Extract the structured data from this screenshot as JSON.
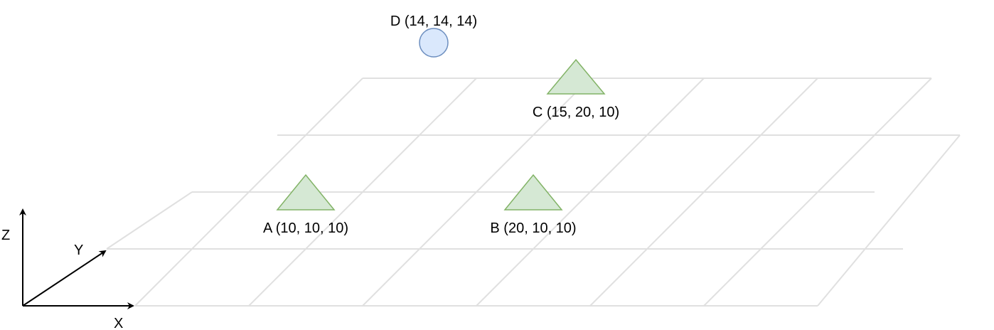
{
  "axes": {
    "x_label": "X",
    "y_label": "Y",
    "z_label": "Z",
    "color": "#000000"
  },
  "grid": {
    "color": "#e0e0e0"
  },
  "points": [
    {
      "id": "A",
      "label": "A (10, 10, 10)",
      "shape": "triangle",
      "coords": [
        10,
        10,
        10
      ],
      "fill": "#d5e8d4",
      "stroke": "#82b366"
    },
    {
      "id": "B",
      "label": "B (20, 10, 10)",
      "shape": "triangle",
      "coords": [
        20,
        10,
        10
      ],
      "fill": "#d5e8d4",
      "stroke": "#82b366"
    },
    {
      "id": "C",
      "label": "C (15, 20, 10)",
      "shape": "triangle",
      "coords": [
        15,
        20,
        10
      ],
      "fill": "#d5e8d4",
      "stroke": "#82b366"
    },
    {
      "id": "D",
      "label": "D (14, 14, 14)",
      "shape": "circle",
      "coords": [
        14,
        14,
        14
      ],
      "fill": "#dae8fc",
      "stroke": "#6c8ebf"
    }
  ]
}
